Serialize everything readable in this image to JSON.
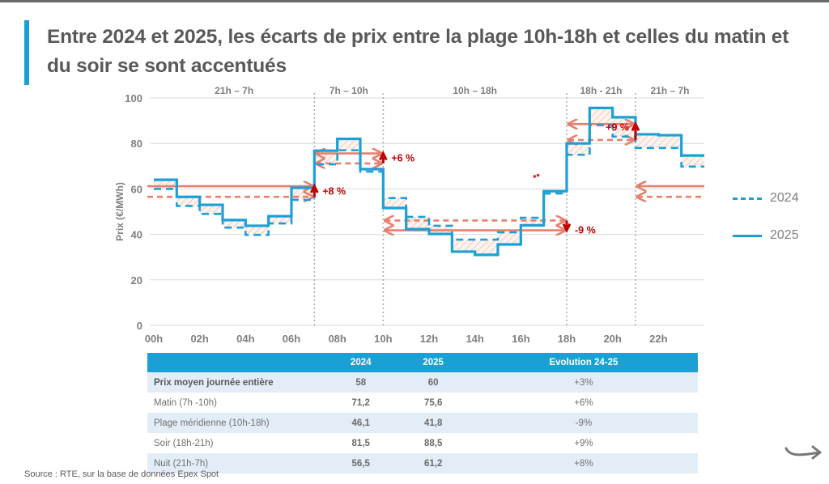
{
  "title": "Entre 2024 et 2025, les écarts de prix entre la plage 10h-18h et celles du matin et du soir se sont accentués",
  "chart_data": {
    "type": "line",
    "step": true,
    "title": "",
    "xlabel": "",
    "ylabel": "Prix (€/MWh)",
    "ylim": [
      0,
      100
    ],
    "yticks": [
      0,
      20,
      40,
      60,
      80,
      100
    ],
    "xlim": [
      0,
      24
    ],
    "xtick_labels": [
      "00h",
      "02h",
      "04h",
      "06h",
      "08h",
      "10h",
      "12h",
      "14h",
      "16h",
      "18h",
      "20h",
      "22h"
    ],
    "xtick_values": [
      0,
      2,
      4,
      6,
      8,
      10,
      12,
      14,
      16,
      18,
      20,
      22
    ],
    "grid": "horizontal",
    "x": [
      0,
      1,
      2,
      3,
      4,
      5,
      6,
      7,
      8,
      9,
      10,
      11,
      12,
      13,
      14,
      15,
      16,
      17,
      18,
      19,
      20,
      21,
      22,
      23
    ],
    "series": [
      {
        "name": "2024",
        "style": "dashed",
        "color": "#1ba0d6",
        "values": [
          60,
          52.5,
          49,
          43,
          39.8,
          44.8,
          55.2,
          70.8,
          77,
          67.6,
          56,
          47.7,
          43.8,
          37.7,
          37.7,
          40.9,
          47.3,
          58,
          75,
          88,
          83,
          78,
          78,
          69.8
        ]
      },
      {
        "name": "2025",
        "style": "solid",
        "color": "#1ba0d6",
        "values": [
          64,
          56.5,
          53,
          46.3,
          43.8,
          48,
          60.5,
          76.8,
          82,
          68.7,
          51.6,
          42.3,
          40.2,
          32.4,
          31,
          35.6,
          44,
          59,
          80,
          95.6,
          91.5,
          84,
          83.6,
          74.7
        ]
      }
    ],
    "periods": [
      {
        "label": "21h – 7h",
        "start": 0,
        "end": 7
      },
      {
        "label": "7h – 10h",
        "start": 7,
        "end": 10
      },
      {
        "label": "10h – 18h",
        "start": 10,
        "end": 18
      },
      {
        "label": "18h - 21h",
        "start": 18,
        "end": 21
      },
      {
        "label": "21h – 7h",
        "start": 21,
        "end": 24
      }
    ],
    "period_dividers": [
      7,
      10,
      18,
      21
    ],
    "averages": [
      {
        "period": "night-left",
        "start": 0,
        "end": 7,
        "avg_2024": 56.5,
        "avg_2025": 61.2,
        "annotation": "+8 %",
        "direction": "up"
      },
      {
        "period": "morning",
        "start": 7,
        "end": 10,
        "avg_2024": 71.2,
        "avg_2025": 75.6,
        "annotation": "+6 %",
        "direction": "up"
      },
      {
        "period": "midday",
        "start": 10,
        "end": 18,
        "avg_2024": 46.1,
        "avg_2025": 41.8,
        "annotation": "-9 %",
        "direction": "down"
      },
      {
        "period": "evening",
        "start": 18,
        "end": 21,
        "avg_2024": 81.5,
        "avg_2025": 88.5,
        "annotation": "+9 %",
        "direction": "up"
      },
      {
        "period": "night-right",
        "start": 21,
        "end": 24,
        "avg_2024": 56.5,
        "avg_2025": 61.2,
        "annotation": "",
        "direction": "left"
      }
    ],
    "legend": {
      "position": "right",
      "entries": [
        {
          "label": "2024",
          "style": "dashed"
        },
        {
          "label": "2025",
          "style": "solid"
        }
      ]
    },
    "colors": {
      "price_line": "#1ba0d6",
      "average_arrow": "#e5806f",
      "evolution_arrow": "#c00000",
      "grid": "#d9d9d9",
      "axis_text": "#7f7f7f"
    }
  },
  "table": {
    "headers": [
      "",
      "2024",
      "2025",
      "Evolution 24-25"
    ],
    "rows": [
      {
        "label": "Prix moyen journée entière",
        "v2024": "58",
        "v2025": "60",
        "evolution": "+3%"
      },
      {
        "label": "Matin (7h -10h)",
        "v2024": "71,2",
        "v2025": "75,6",
        "evolution": "+6%"
      },
      {
        "label": "Plage méridienne (10h-18h)",
        "v2024": "46,1",
        "v2025": "41,8",
        "evolution": "-9%"
      },
      {
        "label": "Soir (18h-21h)",
        "v2024": "81,5",
        "v2025": "88,5",
        "evolution": "+9%"
      },
      {
        "label": "Nuit (21h-7h)",
        "v2024": "56,5",
        "v2025": "61,2",
        "evolution": "+8%"
      }
    ]
  },
  "source": "Source : RTE, sur la base de données Epex Spot",
  "icons": {
    "next": "curved-arrow-right-icon"
  }
}
